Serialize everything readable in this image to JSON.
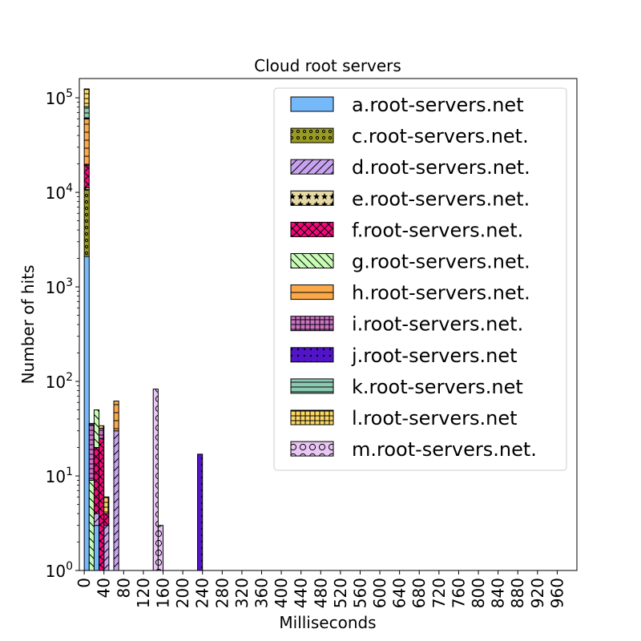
{
  "chart_data": {
    "type": "bar",
    "stacked": true,
    "title": "Cloud root servers",
    "xlabel": "Milliseconds",
    "ylabel": "Number of hits",
    "yscale": "log",
    "ylim": [
      1,
      160000
    ],
    "xlim": [
      -10,
      1000
    ],
    "bin_width": 10,
    "x_ticks": [
      0,
      40,
      80,
      120,
      160,
      200,
      240,
      280,
      320,
      360,
      400,
      440,
      480,
      520,
      560,
      600,
      640,
      680,
      720,
      760,
      800,
      840,
      880,
      920,
      960
    ],
    "y_ticks": [
      {
        "value": 1,
        "base": "10",
        "exp": "0"
      },
      {
        "value": 10,
        "base": "10",
        "exp": "1"
      },
      {
        "value": 100,
        "base": "10",
        "exp": "2"
      },
      {
        "value": 1000,
        "base": "10",
        "exp": "3"
      },
      {
        "value": 10000,
        "base": "10",
        "exp": "4"
      },
      {
        "value": 100000,
        "base": "10",
        "exp": "5"
      }
    ],
    "legend_position": "top-right",
    "series": [
      {
        "name": "a.root-servers.net",
        "color": "#76b9fb",
        "hatch": "none",
        "bins": [
          [
            0,
            2100
          ],
          [
            20,
            3
          ],
          [
            30,
            1
          ]
        ]
      },
      {
        "name": "c.root-servers.net.",
        "color": "#999a20",
        "hatch": "small-circles",
        "bins": [
          [
            0,
            8500
          ],
          [
            10,
            1
          ]
        ]
      },
      {
        "name": "d.root-servers.net.",
        "color": "#c7a2f0",
        "hatch": "diag",
        "bins": [
          [
            0,
            100
          ],
          [
            20,
            1
          ],
          [
            40,
            3
          ],
          [
            60,
            30
          ]
        ]
      },
      {
        "name": "e.root-servers.net.",
        "color": "#e6d9a4",
        "hatch": "stars",
        "bins": [
          [
            0,
            500
          ]
        ]
      },
      {
        "name": "f.root-servers.net.",
        "color": "#f5077a",
        "hatch": "cross",
        "bins": [
          [
            0,
            8000
          ],
          [
            20,
            16
          ],
          [
            30,
            24
          ],
          [
            40,
            1
          ]
        ]
      },
      {
        "name": "g.root-servers.net.",
        "color": "#c8fdb6",
        "hatch": "backdiag",
        "bins": [
          [
            0,
            500
          ],
          [
            10,
            8
          ],
          [
            20,
            30
          ]
        ]
      },
      {
        "name": "h.root-servers.net.",
        "color": "#fba848",
        "hatch": "horizontal",
        "bins": [
          [
            0,
            40000
          ],
          [
            60,
            32
          ]
        ]
      },
      {
        "name": "i.root-servers.net.",
        "color": "#ca72c3",
        "hatch": "grid",
        "bins": [
          [
            0,
            1000
          ],
          [
            10,
            26
          ],
          [
            30,
            7
          ]
        ]
      },
      {
        "name": "j.root-servers.net",
        "color": "#5214c8",
        "hatch": "dots",
        "bins": [
          [
            230,
            17
          ]
        ]
      },
      {
        "name": "k.root-servers.net",
        "color": "#8dcab3",
        "hatch": "hlines",
        "bins": [
          [
            0,
            20000
          ],
          [
            10,
            1
          ]
        ]
      },
      {
        "name": "l.root-servers.net",
        "color": "#fcd964",
        "hatch": "grid",
        "bins": [
          [
            0,
            42000
          ],
          [
            30,
            2
          ],
          [
            40,
            2
          ]
        ]
      },
      {
        "name": "m.root-servers.net.",
        "color": "#e9c6f3",
        "hatch": "circles",
        "bins": [
          [
            0,
            1500
          ],
          [
            140,
            83
          ],
          [
            150,
            3
          ]
        ]
      }
    ]
  }
}
